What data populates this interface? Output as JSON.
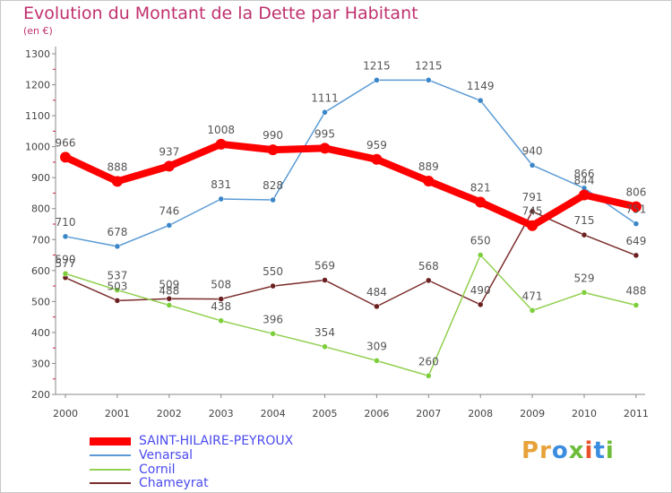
{
  "header": {
    "title": "Evolution du Montant de la Dette par Habitant",
    "unit": "(en €)"
  },
  "logo": {
    "text": "Proxiti",
    "letters": [
      "P",
      "r",
      "o",
      "x",
      "i",
      "t",
      "i"
    ],
    "colors": [
      "#e8a23a",
      "#e8a23a",
      "#3a8de0",
      "#6dbd3a",
      "#e8522d",
      "#3a8de0",
      "#6dbd3a"
    ]
  },
  "chart_data": {
    "type": "line",
    "title": "Evolution du Montant de la Dette par Habitant",
    "subtitle": "(en €)",
    "xlabel": "",
    "ylabel": "",
    "categories": [
      "2000",
      "2001",
      "2002",
      "2003",
      "2004",
      "2005",
      "2006",
      "2007",
      "2008",
      "2009",
      "2010",
      "2011"
    ],
    "ylim": [
      200,
      1300
    ],
    "yticks": [
      200,
      300,
      400,
      500,
      600,
      700,
      800,
      900,
      1000,
      1100,
      1200,
      1300
    ],
    "grid": false,
    "legend_position": "bottom-left",
    "series": [
      {
        "name": "SAINT-HILAIRE-PEYROUX",
        "color": "#ff0000",
        "values": [
          966,
          888,
          937,
          1008,
          990,
          995,
          959,
          889,
          821,
          745,
          844,
          806
        ]
      },
      {
        "name": "Venarsal",
        "color": "#5b9bd5",
        "values": [
          710,
          678,
          746,
          831,
          828,
          1111,
          1215,
          1215,
          1149,
          940,
          866,
          751
        ]
      },
      {
        "name": "Cornil",
        "color": "#92d050",
        "values": [
          590,
          537,
          488,
          438,
          396,
          354,
          309,
          260,
          650,
          471,
          529,
          488
        ]
      },
      {
        "name": "Chameyrat",
        "color": "#7b2c2c",
        "values": [
          577,
          503,
          509,
          508,
          550,
          569,
          484,
          568,
          490,
          791,
          715,
          649
        ]
      }
    ]
  }
}
